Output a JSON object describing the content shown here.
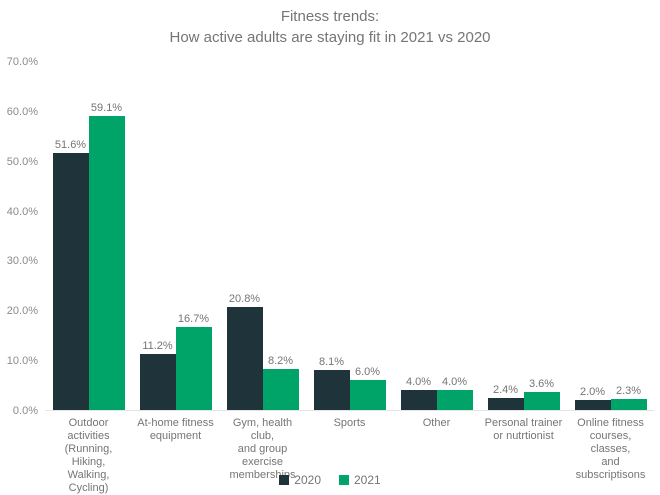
{
  "title": {
    "line1": "Fitness trends:",
    "line2": "How active adults are staying fit in 2021 vs 2020"
  },
  "colors": {
    "bar_2020": "#1e333a",
    "bar_2021": "#00a368",
    "axis_line": "#e4e4e4",
    "text_gray": "#757575",
    "tick_gray": "#8b8b8b"
  },
  "chart_data": {
    "type": "bar",
    "title": "Fitness trends: How active adults are staying fit in 2021 vs 2020",
    "categories": [
      "Outdoor activities (Running, Hiking, Walking, Cycling)",
      "At-home fitness equipment",
      "Gym, health club, and group exercise memberships",
      "Sports",
      "Other",
      "Personal trainer or nutrtionist",
      "Online fitness courses, classes, and subscriptisons"
    ],
    "categories_display": [
      "Outdoor\nactivities\n(Running, Hiking,\nWalking, Cycling)",
      "At-home fitness\nequipment",
      "Gym, health club,\nand group\nexercise\nmemberships",
      "Sports",
      "Other",
      "Personal trainer\nor nutrtionist",
      "Online fitness\ncourses, classes,\nand\nsubscriptisons"
    ],
    "series": [
      {
        "name": "2020",
        "color": "#1e333a",
        "values": [
          51.6,
          11.2,
          20.8,
          8.1,
          4.0,
          2.4,
          2.0
        ],
        "labels": [
          "51.6%",
          "11.2%",
          "20.8%",
          "8.1%",
          "4.0%",
          "2.4%",
          "2.0%"
        ]
      },
      {
        "name": "2021",
        "color": "#00a368",
        "values": [
          59.1,
          16.7,
          8.2,
          6.0,
          4.0,
          3.6,
          2.3
        ],
        "labels": [
          "59.1%",
          "16.7%",
          "8.2%",
          "6.0%",
          "4.0%",
          "3.6%",
          "2.3%"
        ]
      }
    ],
    "y_ticks": [
      "70.0%",
      "60.0%",
      "50.0%",
      "40.0%",
      "30.0%",
      "20.0%",
      "10.0%",
      "0.0%"
    ],
    "ylim": [
      0,
      70
    ],
    "xlabel": "",
    "ylabel": "",
    "grid": false,
    "legend_position": "bottom"
  }
}
